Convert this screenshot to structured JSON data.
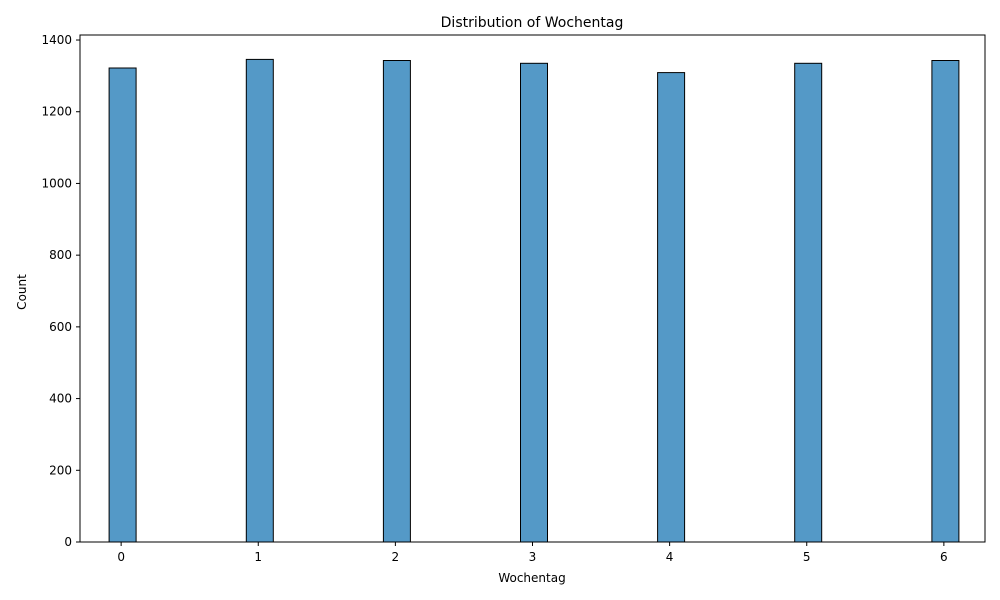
{
  "chart_data": {
    "type": "bar",
    "title": "Distribution of Wochentag",
    "xlabel": "Wochentag",
    "ylabel": "Count",
    "categories": [
      "0",
      "1",
      "2",
      "3",
      "4",
      "5",
      "6"
    ],
    "x": [
      0,
      1,
      2,
      3,
      4,
      5,
      6
    ],
    "values": [
      1322,
      1346,
      1343,
      1335,
      1309,
      1335,
      1343
    ],
    "xlim": [
      -0.3,
      6.3
    ],
    "ylim": [
      0,
      1414
    ],
    "yticks": [
      0,
      200,
      400,
      600,
      800,
      1000,
      1200,
      1400
    ],
    "grid": false,
    "bar_color": "#5499c7",
    "edge_color": "#000000"
  }
}
